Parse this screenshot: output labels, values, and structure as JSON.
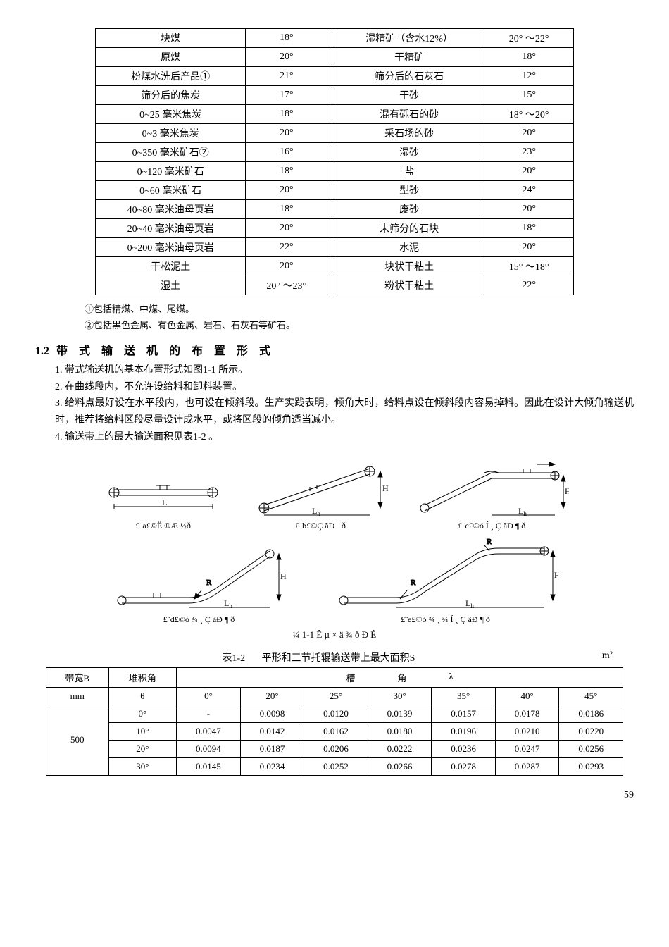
{
  "table1": {
    "rows": [
      [
        "块煤",
        "18°",
        "湿精矿（含水12%）",
        "20° ～22°"
      ],
      [
        "原煤",
        "20°",
        "干精矿",
        "18°"
      ],
      [
        "粉煤水洗后产品①",
        "21°",
        "筛分后的石灰石",
        "12°"
      ],
      [
        "筛分后的焦炭",
        "17°",
        "干砂",
        "15°"
      ],
      [
        "0~25  毫米焦炭",
        "18°",
        "混有砾石的砂",
        "18° ～20°"
      ],
      [
        "0~3 毫米焦炭",
        "20°",
        "采石场的砂",
        "20°"
      ],
      [
        "0~350 毫米矿石②",
        "16°",
        "湿砂",
        "23°"
      ],
      [
        "0~120 毫米矿石",
        "18°",
        "盐",
        "20°"
      ],
      [
        "0~60  毫米矿石",
        "20°",
        "型砂",
        "24°"
      ],
      [
        "40~80 毫米油母页岩",
        "18°",
        "废砂",
        "20°"
      ],
      [
        "20~40 毫米油母页岩",
        "20°",
        "未筛分的石块",
        "18°"
      ],
      [
        "0~200 毫米油母页岩",
        "22°",
        "水泥",
        "20°"
      ],
      [
        "干松泥土",
        "20°",
        "块状干粘土",
        "15° ～18°"
      ],
      [
        "湿土",
        "20° ～23°",
        "粉状干粘土",
        "22°"
      ]
    ]
  },
  "notes": {
    "n1": "①包括精煤、中煤、尾煤。",
    "n2": "②包括黑色金属、有色金属、岩石、石灰石等矿石。"
  },
  "section": {
    "number": "1.2",
    "title": "带 式 输 送 机 的 布 置 形 式"
  },
  "paragraphs": {
    "p1": "1. 带式输送机的基本布置形式如图1-1 所示。",
    "p2": "2. 在曲线段内，不允许设给料和卸料装置。",
    "p3": "3. 给料点最好设在水平段内，也可设在倾斜段。生产实践表明，倾角大时，给料点设在倾斜段内容易掉料。因此在设计大倾角输送机时，推荐将给料区段尽量设计成水平，或将区段的倾角适当减小。",
    "p4": "4. 输送带上的最大输送面积见表1-2  。"
  },
  "figs": {
    "a": "£¨a£©Ë ®Æ ½ð",
    "b": "£¨b£©Ç ãÐ ±ð",
    "c": "£¨c£©ó Í ¸ Ç ãÐ ¶ ð",
    "d": "£¨d£©ó ¾ ¸ Ç ãÐ ¶ ð",
    "e": "£¨e£©ó ¾ ¸ ¾ Í ¸ Ç ãÐ ¶ ð",
    "main": "¼ 1-1  Ê µ × ä ¾ ð Ð Ê"
  },
  "table2": {
    "title_left": "表1-2",
    "title_main": "平形和三节托辊输送带上最大面积S",
    "unit": "m²",
    "headers": {
      "bw": "带宽B",
      "ang": "堆积角",
      "mm": "mm",
      "theta": "θ",
      "slot": "槽",
      "slotang": "角",
      "lambda": "λ",
      "cols": [
        "0°",
        "20°",
        "25°",
        "30°",
        "35°",
        "40°",
        "45°"
      ]
    },
    "bw_val": "500",
    "rows": [
      [
        "0°",
        "-",
        "0.0098",
        "0.0120",
        "0.0139",
        "0.0157",
        "0.0178",
        "0.0186"
      ],
      [
        "10°",
        "0.0047",
        "0.0142",
        "0.0162",
        "0.0180",
        "0.0196",
        "0.0210",
        "0.0220"
      ],
      [
        "20°",
        "0.0094",
        "0.0187",
        "0.0206",
        "0.0222",
        "0.0236",
        "0.0247",
        "0.0256"
      ],
      [
        "30°",
        "0.0145",
        "0.0234",
        "0.0252",
        "0.0266",
        "0.0278",
        "0.0287",
        "0.0293"
      ]
    ]
  },
  "pagenum": "59"
}
